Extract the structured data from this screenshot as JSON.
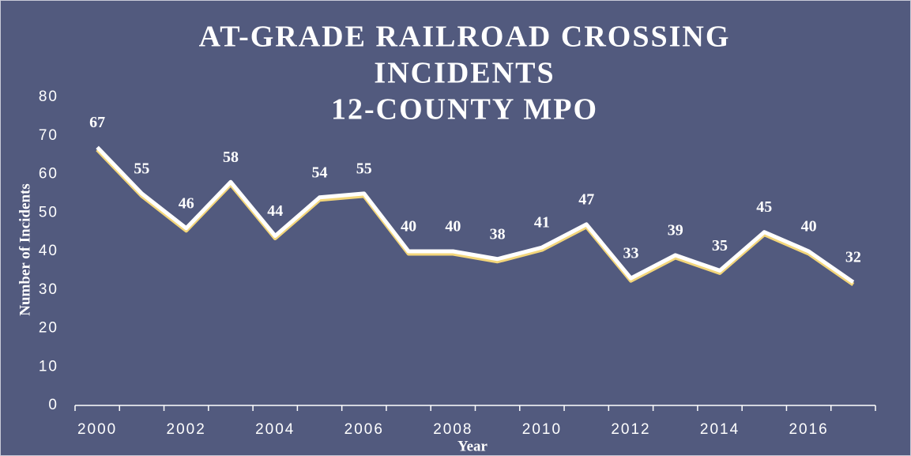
{
  "chart_data": {
    "type": "line",
    "title": [
      "AT-GRADE RAILROAD CROSSING",
      "INCIDENTS",
      "12-COUNTY MPO"
    ],
    "x_label": "Year",
    "y_label": "Number of Incidents",
    "categories": [
      "2000",
      null,
      "2002",
      null,
      "2004",
      null,
      "2006",
      null,
      "2008",
      null,
      "2010",
      null,
      "2012",
      null,
      "2014",
      null,
      "2016",
      null
    ],
    "series": [
      {
        "name": "Incidents",
        "color": "#ffffff",
        "values": [
          67,
          55,
          46,
          58,
          44,
          54,
          55,
          40,
          40,
          38,
          41,
          47,
          33,
          39,
          35,
          45,
          40,
          32
        ]
      }
    ],
    "ylim": [
      0,
      80
    ],
    "yticks": [
      0,
      10,
      20,
      30,
      40,
      50,
      60,
      70,
      80
    ],
    "grid": false
  }
}
